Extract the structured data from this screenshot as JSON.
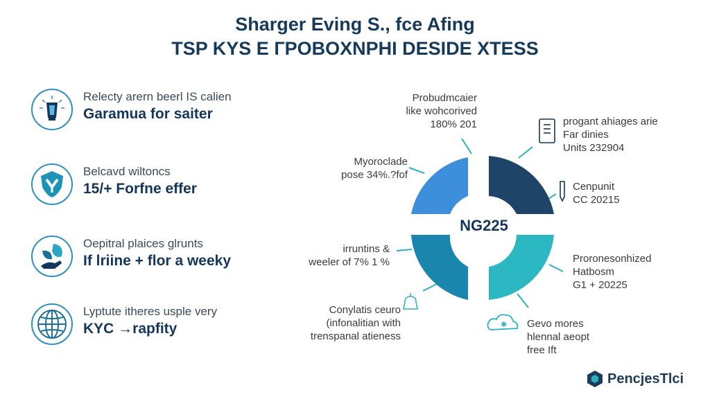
{
  "title": {
    "line1": "Sharger Eving S., fce Afing",
    "line2": "TSP KYS E ГPOBOXNPHI DESIDE XTESS"
  },
  "left_items": [
    {
      "icon": "lantern-icon",
      "text1": "Relecty arern beerl IS calien",
      "text2": "Garamua for saiter"
    },
    {
      "icon": "shield-icon",
      "text1": "Belcavd wiltoncs",
      "text2": "15/+ Forfne effer"
    },
    {
      "icon": "leaf-hand-icon",
      "text1": "Oepitral plaices glrunts",
      "text2": "If lriine + flor a weeky"
    },
    {
      "icon": "globe-icon",
      "text1": "Lyptute itheres usple very",
      "text2": "KYC →rapfity"
    }
  ],
  "donut": {
    "center_label": "NG225",
    "colors": [
      "#3d8fdb",
      "#1e4568",
      "#2cb8c2",
      "#1a86ad"
    ]
  },
  "callouts": {
    "top": [
      "Probudmcaier",
      "like wohcorived",
      "180% 201"
    ],
    "upper_left": [
      "Myoroclade",
      "pose 34%.?fof"
    ],
    "middle_left": [
      "irruntins &",
      "weeler of 7% 1 %"
    ],
    "bottom_left": [
      "Conylatis ceuro",
      "(infonalitian with",
      "trenspanal atieness"
    ],
    "top_right": [
      "progant ahiages arie",
      "Far dinies",
      "Units 232904"
    ],
    "right": [
      "Cenpunit",
      "CC 20215"
    ],
    "lower_right": [
      "Proronesonhized",
      "Hatbosm",
      "G1 + 20225"
    ],
    "bottom_right": [
      "Gevo mores",
      "hlennal aeopt",
      "free Ift"
    ]
  },
  "brand": {
    "name": "PencjesTlci"
  }
}
